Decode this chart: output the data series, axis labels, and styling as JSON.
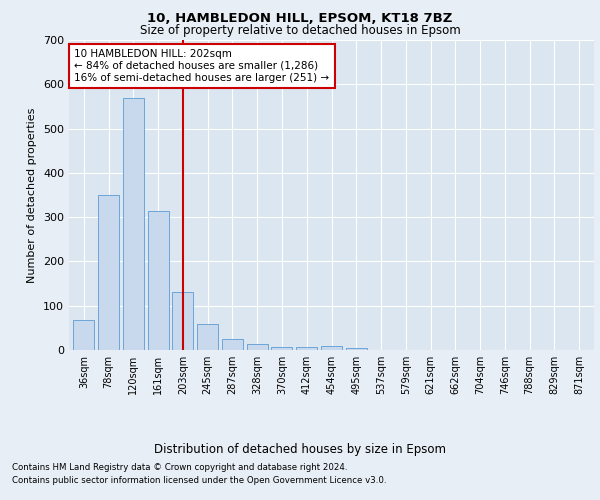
{
  "title1": "10, HAMBLEDON HILL, EPSOM, KT18 7BZ",
  "title2": "Size of property relative to detached houses in Epsom",
  "xlabel": "Distribution of detached houses by size in Epsom",
  "ylabel": "Number of detached properties",
  "categories": [
    "36sqm",
    "78sqm",
    "120sqm",
    "161sqm",
    "203sqm",
    "245sqm",
    "287sqm",
    "328sqm",
    "370sqm",
    "412sqm",
    "454sqm",
    "495sqm",
    "537sqm",
    "579sqm",
    "621sqm",
    "662sqm",
    "704sqm",
    "746sqm",
    "788sqm",
    "829sqm",
    "871sqm"
  ],
  "values": [
    68,
    350,
    570,
    315,
    130,
    58,
    25,
    13,
    7,
    7,
    10,
    5,
    0,
    0,
    0,
    0,
    0,
    0,
    0,
    0,
    0
  ],
  "bar_color": "#c9d9ed",
  "bar_edge_color": "#5b9bd5",
  "red_line_index": 4,
  "annotation_text": "10 HAMBLEDON HILL: 202sqm\n← 84% of detached houses are smaller (1,286)\n16% of semi-detached houses are larger (251) →",
  "annotation_box_color": "#ffffff",
  "annotation_edge_color": "#cc0000",
  "red_line_color": "#cc0000",
  "footer1": "Contains HM Land Registry data © Crown copyright and database right 2024.",
  "footer2": "Contains public sector information licensed under the Open Government Licence v3.0.",
  "ylim": [
    0,
    700
  ],
  "background_color": "#e8eef5",
  "plot_bg_color": "#dce6f0"
}
